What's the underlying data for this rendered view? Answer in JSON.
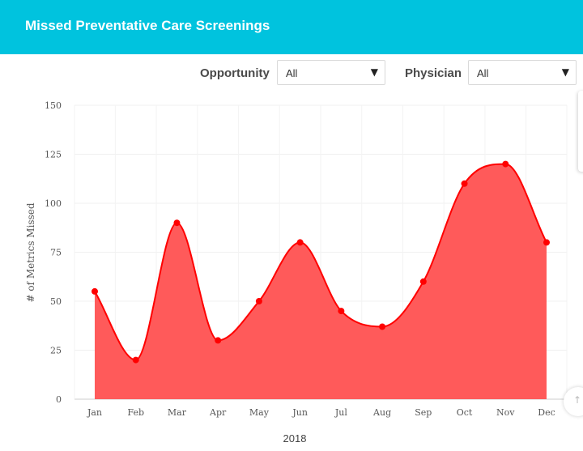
{
  "header": {
    "title": "Missed Preventative Care Screenings"
  },
  "filters": {
    "opportunity": {
      "label": "Opportunity",
      "value": "All"
    },
    "physician": {
      "label": "Physician",
      "value": "All"
    },
    "arrow": "▼"
  },
  "scroll_top_icon": "↑",
  "chart_data": {
    "type": "area",
    "categories": [
      "Jan",
      "Feb",
      "Mar",
      "Apr",
      "May",
      "Jun",
      "Jul",
      "Aug",
      "Sep",
      "Oct",
      "Nov",
      "Dec"
    ],
    "series": [
      {
        "values": [
          55,
          20,
          90,
          30,
          50,
          80,
          45,
          37,
          60,
          110,
          120,
          80
        ]
      }
    ],
    "xlabel": "2018",
    "ylabel": "# of Metrics Missed",
    "ylim": [
      0,
      150
    ],
    "yticks": [
      0,
      25,
      50,
      75,
      100,
      125,
      150
    ],
    "grid": true,
    "legend": "none",
    "colors": {
      "line": "#ff0000",
      "fill": "#ff5a5a",
      "point": "#ff0000"
    }
  }
}
